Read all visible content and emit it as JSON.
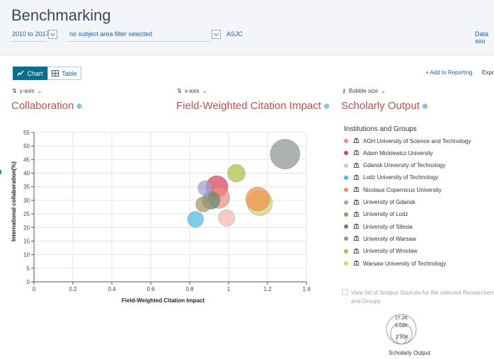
{
  "page": {
    "title": "Benchmarking"
  },
  "filters": {
    "year_range": "2010 to 2017",
    "subject_filter": "no subject area filter selected",
    "asjc": "ASJC",
    "data_source": "Data sou"
  },
  "view_toggle": {
    "chart": "Chart",
    "table": "Table"
  },
  "actions": {
    "add_to_reporting": "+ Add to Reporting",
    "export": "Expo"
  },
  "axes": {
    "y_axis_label": "y-axis",
    "x_axis_label": "x-axis",
    "bubble_size_label": "Bubble size",
    "y_metric": "Collaboration",
    "x_metric": "Field-Weighted Citation Impact",
    "bubble_metric": "Scholarly Output"
  },
  "legend": {
    "title": "Institutions and Groups",
    "items": [
      {
        "label": "AGH University of Science and Technology",
        "color": "#f08a7e"
      },
      {
        "label": "Adam Mickiewicz University",
        "color": "#d9415e"
      },
      {
        "label": "Gdansk University of Technology",
        "color": "#f4b8ad"
      },
      {
        "label": "Lodz University of Technology",
        "color": "#48bde0"
      },
      {
        "label": "Nicolaus Copernicus University",
        "color": "#f0904e"
      },
      {
        "label": "University of Gdansk",
        "color": "#9d9fd6"
      },
      {
        "label": "University of Lodz",
        "color": "#a89462"
      },
      {
        "label": "University of Silesia",
        "color": "#5d8a72"
      },
      {
        "label": "University of Warsaw",
        "color": "#8e948f"
      },
      {
        "label": "University of Wroclaw",
        "color": "#a5c340"
      },
      {
        "label": "Warsaw University of Technology",
        "color": "#d6d36a"
      }
    ]
  },
  "check_option": "View list of Scopus Sources for the selected Researchers and Groups",
  "size_legend": {
    "values": [
      "17.2K",
      "9.68K",
      "1.91K"
    ],
    "caption": "Scholarly Output"
  },
  "chart_data": {
    "type": "scatter",
    "xlabel": "Field-Weighted Citation Impact",
    "ylabel": "International collaboration(%)",
    "xlim": [
      0,
      1.4
    ],
    "ylim": [
      0,
      55
    ],
    "x_ticks": [
      "0",
      "0.2",
      "0.4",
      "0.6",
      "0.8",
      "1",
      "1.2",
      "1.4"
    ],
    "y_ticks": [
      "0",
      "5",
      "10",
      "15",
      "20",
      "25",
      "30",
      "35",
      "40",
      "45",
      "50",
      "55"
    ],
    "grid": true,
    "points": [
      {
        "name": "AGH University of Science and Technology",
        "x": 0.95,
        "y": 31,
        "size": 9000,
        "color": "#f08a7e"
      },
      {
        "name": "Adam Mickiewicz University",
        "x": 0.94,
        "y": 35,
        "size": 9500,
        "color": "#d9415e"
      },
      {
        "name": "Gdansk University of Technology",
        "x": 0.99,
        "y": 23.5,
        "size": 5200,
        "color": "#f4b8ad"
      },
      {
        "name": "Lodz University of Technology",
        "x": 0.83,
        "y": 23,
        "size": 5000,
        "color": "#48bde0"
      },
      {
        "name": "Nicolaus Copernicus University",
        "x": 1.15,
        "y": 30.5,
        "size": 11000,
        "color": "#f0904e"
      },
      {
        "name": "University of Gdansk",
        "x": 0.88,
        "y": 34.5,
        "size": 4200,
        "color": "#9d9fd6"
      },
      {
        "name": "University of Lodz",
        "x": 0.87,
        "y": 28.5,
        "size": 4500,
        "color": "#a89462"
      },
      {
        "name": "University of Silesia",
        "x": 0.91,
        "y": 30,
        "size": 6200,
        "color": "#5d8a72"
      },
      {
        "name": "University of Warsaw",
        "x": 1.29,
        "y": 47,
        "size": 17200,
        "color": "#8e948f"
      },
      {
        "name": "University of Wroclaw",
        "x": 1.04,
        "y": 40,
        "size": 6000,
        "color": "#a5c340"
      },
      {
        "name": "Warsaw University of Technology",
        "x": 1.16,
        "y": 29,
        "size": 12500,
        "color": "#d6d36a"
      }
    ]
  }
}
